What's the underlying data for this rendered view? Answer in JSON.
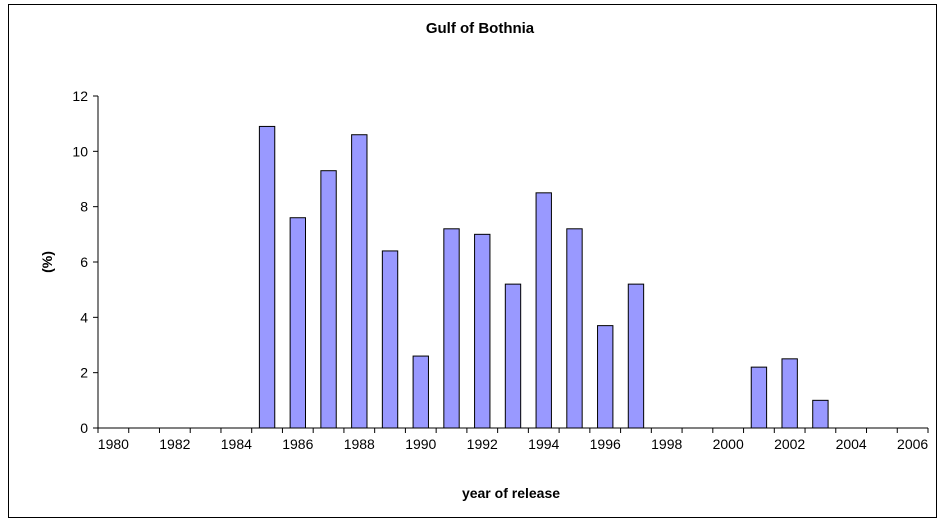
{
  "chart_data": {
    "type": "bar",
    "title": "Gulf of Bothnia",
    "xlabel": "year of release",
    "ylabel": "(%)",
    "ylim": [
      0,
      12
    ],
    "yticks": [
      0,
      2,
      4,
      6,
      8,
      10,
      12
    ],
    "xlim": [
      1980,
      2006
    ],
    "xticks": [
      1980,
      1982,
      1984,
      1986,
      1988,
      1990,
      1992,
      1994,
      1996,
      1998,
      2000,
      2002,
      2004,
      2006
    ],
    "grid": false,
    "legend": "none",
    "bar_color": "#9999ff",
    "series": [
      {
        "x": [
          1985,
          1986,
          1987,
          1988,
          1989,
          1990,
          1991,
          1992,
          1993,
          1994,
          1995,
          1996,
          1997,
          2001,
          2002,
          2003
        ],
        "values": [
          10.9,
          7.6,
          9.3,
          10.6,
          6.4,
          2.6,
          7.2,
          7.0,
          5.2,
          8.5,
          7.2,
          3.7,
          5.2,
          2.2,
          2.5,
          1.0
        ]
      }
    ]
  }
}
